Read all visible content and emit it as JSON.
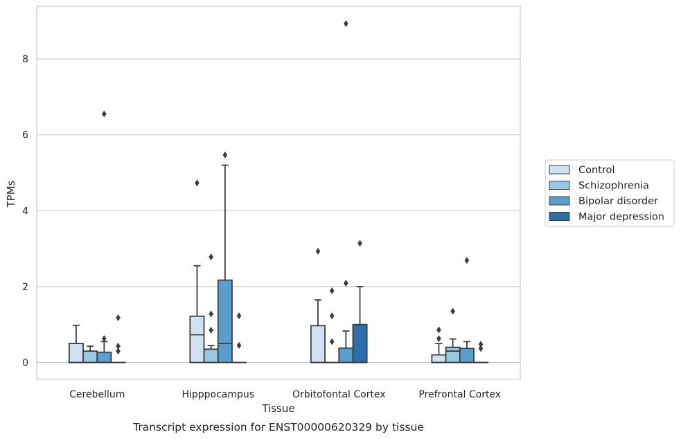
{
  "chart_data": {
    "type": "box",
    "xlabel": "Tissue",
    "ylabel": "TPMs",
    "caption": "Transcript expression for ENST00000620329 by tissue",
    "ylim": [
      -0.45,
      9.3
    ],
    "yticks": [
      0,
      2,
      4,
      6,
      8
    ],
    "grid": "horizontal",
    "legend_position": "right",
    "categories": [
      "Cerebellum",
      "Hipppocampus",
      "Orbitofontal Cortex",
      "Prefrontal Cortex"
    ],
    "series": [
      {
        "name": "Control",
        "color": "#d0e1f2",
        "boxes": [
          {
            "q1": 0,
            "median": 0,
            "q3": 0.5,
            "whisker_low": 0,
            "whisker_high": 0.98,
            "outliers": []
          },
          {
            "q1": 0,
            "median": 0.73,
            "q3": 1.22,
            "whisker_low": 0,
            "whisker_high": 2.55,
            "outliers": [
              4.73
            ]
          },
          {
            "q1": 0,
            "median": 0,
            "q3": 0.97,
            "whisker_low": 0,
            "whisker_high": 1.65,
            "outliers": [
              2.93
            ]
          },
          {
            "q1": 0,
            "median": 0,
            "q3": 0.2,
            "whisker_low": 0,
            "whisker_high": 0.5,
            "outliers": [
              0.63,
              0.86
            ]
          }
        ]
      },
      {
        "name": "Schizophrenia",
        "color": "#9ac8e0",
        "boxes": [
          {
            "q1": 0,
            "median": 0,
            "q3": 0.3,
            "whisker_low": 0,
            "whisker_high": 0.43,
            "outliers": []
          },
          {
            "q1": 0,
            "median": 0,
            "q3": 0.35,
            "whisker_low": 0,
            "whisker_high": 0.45,
            "outliers": [
              0.85,
              1.28,
              2.78
            ]
          },
          {
            "q1": 0,
            "median": 0,
            "q3": 0,
            "whisker_low": 0,
            "whisker_high": 0,
            "outliers": [
              0.55,
              1.23,
              1.89
            ]
          },
          {
            "q1": 0,
            "median": 0.3,
            "q3": 0.4,
            "whisker_low": 0,
            "whisker_high": 0.62,
            "outliers": [
              1.35
            ]
          }
        ]
      },
      {
        "name": "Bipolar disorder",
        "color": "#5a9ecd",
        "boxes": [
          {
            "q1": 0,
            "median": 0,
            "q3": 0.27,
            "whisker_low": 0,
            "whisker_high": 0.55,
            "outliers": [
              0.63,
              6.55
            ]
          },
          {
            "q1": 0,
            "median": 0.5,
            "q3": 2.17,
            "whisker_low": 0,
            "whisker_high": 5.2,
            "outliers": [
              5.47
            ]
          },
          {
            "q1": 0,
            "median": 0,
            "q3": 0.38,
            "whisker_low": 0,
            "whisker_high": 0.83,
            "outliers": [
              2.09,
              8.93
            ]
          },
          {
            "q1": 0,
            "median": 0,
            "q3": 0.37,
            "whisker_low": 0,
            "whisker_high": 0.55,
            "outliers": [
              2.69
            ]
          }
        ]
      },
      {
        "name": "Major depression",
        "color": "#2c6ea9",
        "boxes": [
          {
            "q1": 0,
            "median": 0,
            "q3": 0,
            "whisker_low": 0,
            "whisker_high": 0,
            "outliers": [
              0.3,
              0.43,
              1.18
            ]
          },
          {
            "q1": 0,
            "median": 0,
            "q3": 0,
            "whisker_low": 0,
            "whisker_high": 0,
            "outliers": [
              0.45,
              1.23
            ]
          },
          {
            "q1": 0,
            "median": 0,
            "q3": 1.0,
            "whisker_low": 0,
            "whisker_high": 2.0,
            "outliers": [
              3.14
            ]
          },
          {
            "q1": 0,
            "median": 0,
            "q3": 0,
            "whisker_low": 0,
            "whisker_high": 0,
            "outliers": [
              0.37,
              0.48
            ]
          }
        ]
      }
    ]
  }
}
